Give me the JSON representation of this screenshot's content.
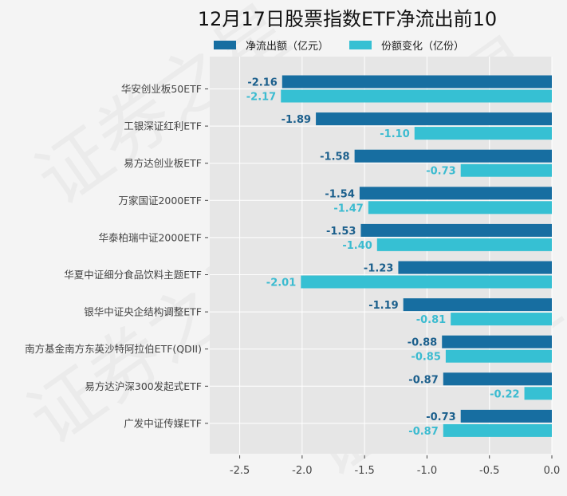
{
  "watermark": "证券之星",
  "chart_data": {
    "type": "bar",
    "orientation": "horizontal",
    "title": "12月17日股票指数ETF净流出前10",
    "xlabel": "",
    "ylabel": "",
    "xlim": [
      -2.74,
      0.0
    ],
    "xticks": [
      -2.5,
      -2.0,
      -1.5,
      -1.0,
      -0.5,
      0.0
    ],
    "xtick_labels": [
      "-2.5",
      "-2.0",
      "-1.5",
      "-1.0",
      "-0.5",
      "0.0"
    ],
    "grid": true,
    "legend_position": "top-center",
    "categories": [
      "华安创业板50ETF",
      "工银深证红利ETF",
      "易方达创业板ETF",
      "万家国证2000ETF",
      "华泰柏瑞中证2000ETF",
      "华夏中证细分食品饮料主题ETF",
      "银华中证央企结构调整ETF",
      "南方基金南方东英沙特阿拉伯ETF(QDII)",
      "易方达沪深300发起式ETF",
      "广发中证传媒ETF"
    ],
    "series": [
      {
        "name": "净流出额（亿元）",
        "color": "#176ea1",
        "values": [
          -2.16,
          -1.89,
          -1.58,
          -1.54,
          -1.53,
          -1.23,
          -1.19,
          -0.88,
          -0.87,
          -0.73
        ],
        "labels": [
          "-2.16",
          "-1.89",
          "-1.58",
          "-1.54",
          "-1.53",
          "-1.23",
          "-1.19",
          "-0.88",
          "-0.87",
          "-0.73"
        ]
      },
      {
        "name": "份额变化（亿份）",
        "color": "#36c0d3",
        "values": [
          -2.17,
          -1.1,
          -0.73,
          -1.47,
          -1.4,
          -2.01,
          -0.81,
          -0.85,
          -0.22,
          -0.87
        ],
        "labels": [
          "-2.17",
          "-1.10",
          "-0.73",
          "-1.47",
          "-1.40",
          "-2.01",
          "-0.81",
          "-0.85",
          "-0.22",
          "-0.87"
        ]
      }
    ]
  }
}
